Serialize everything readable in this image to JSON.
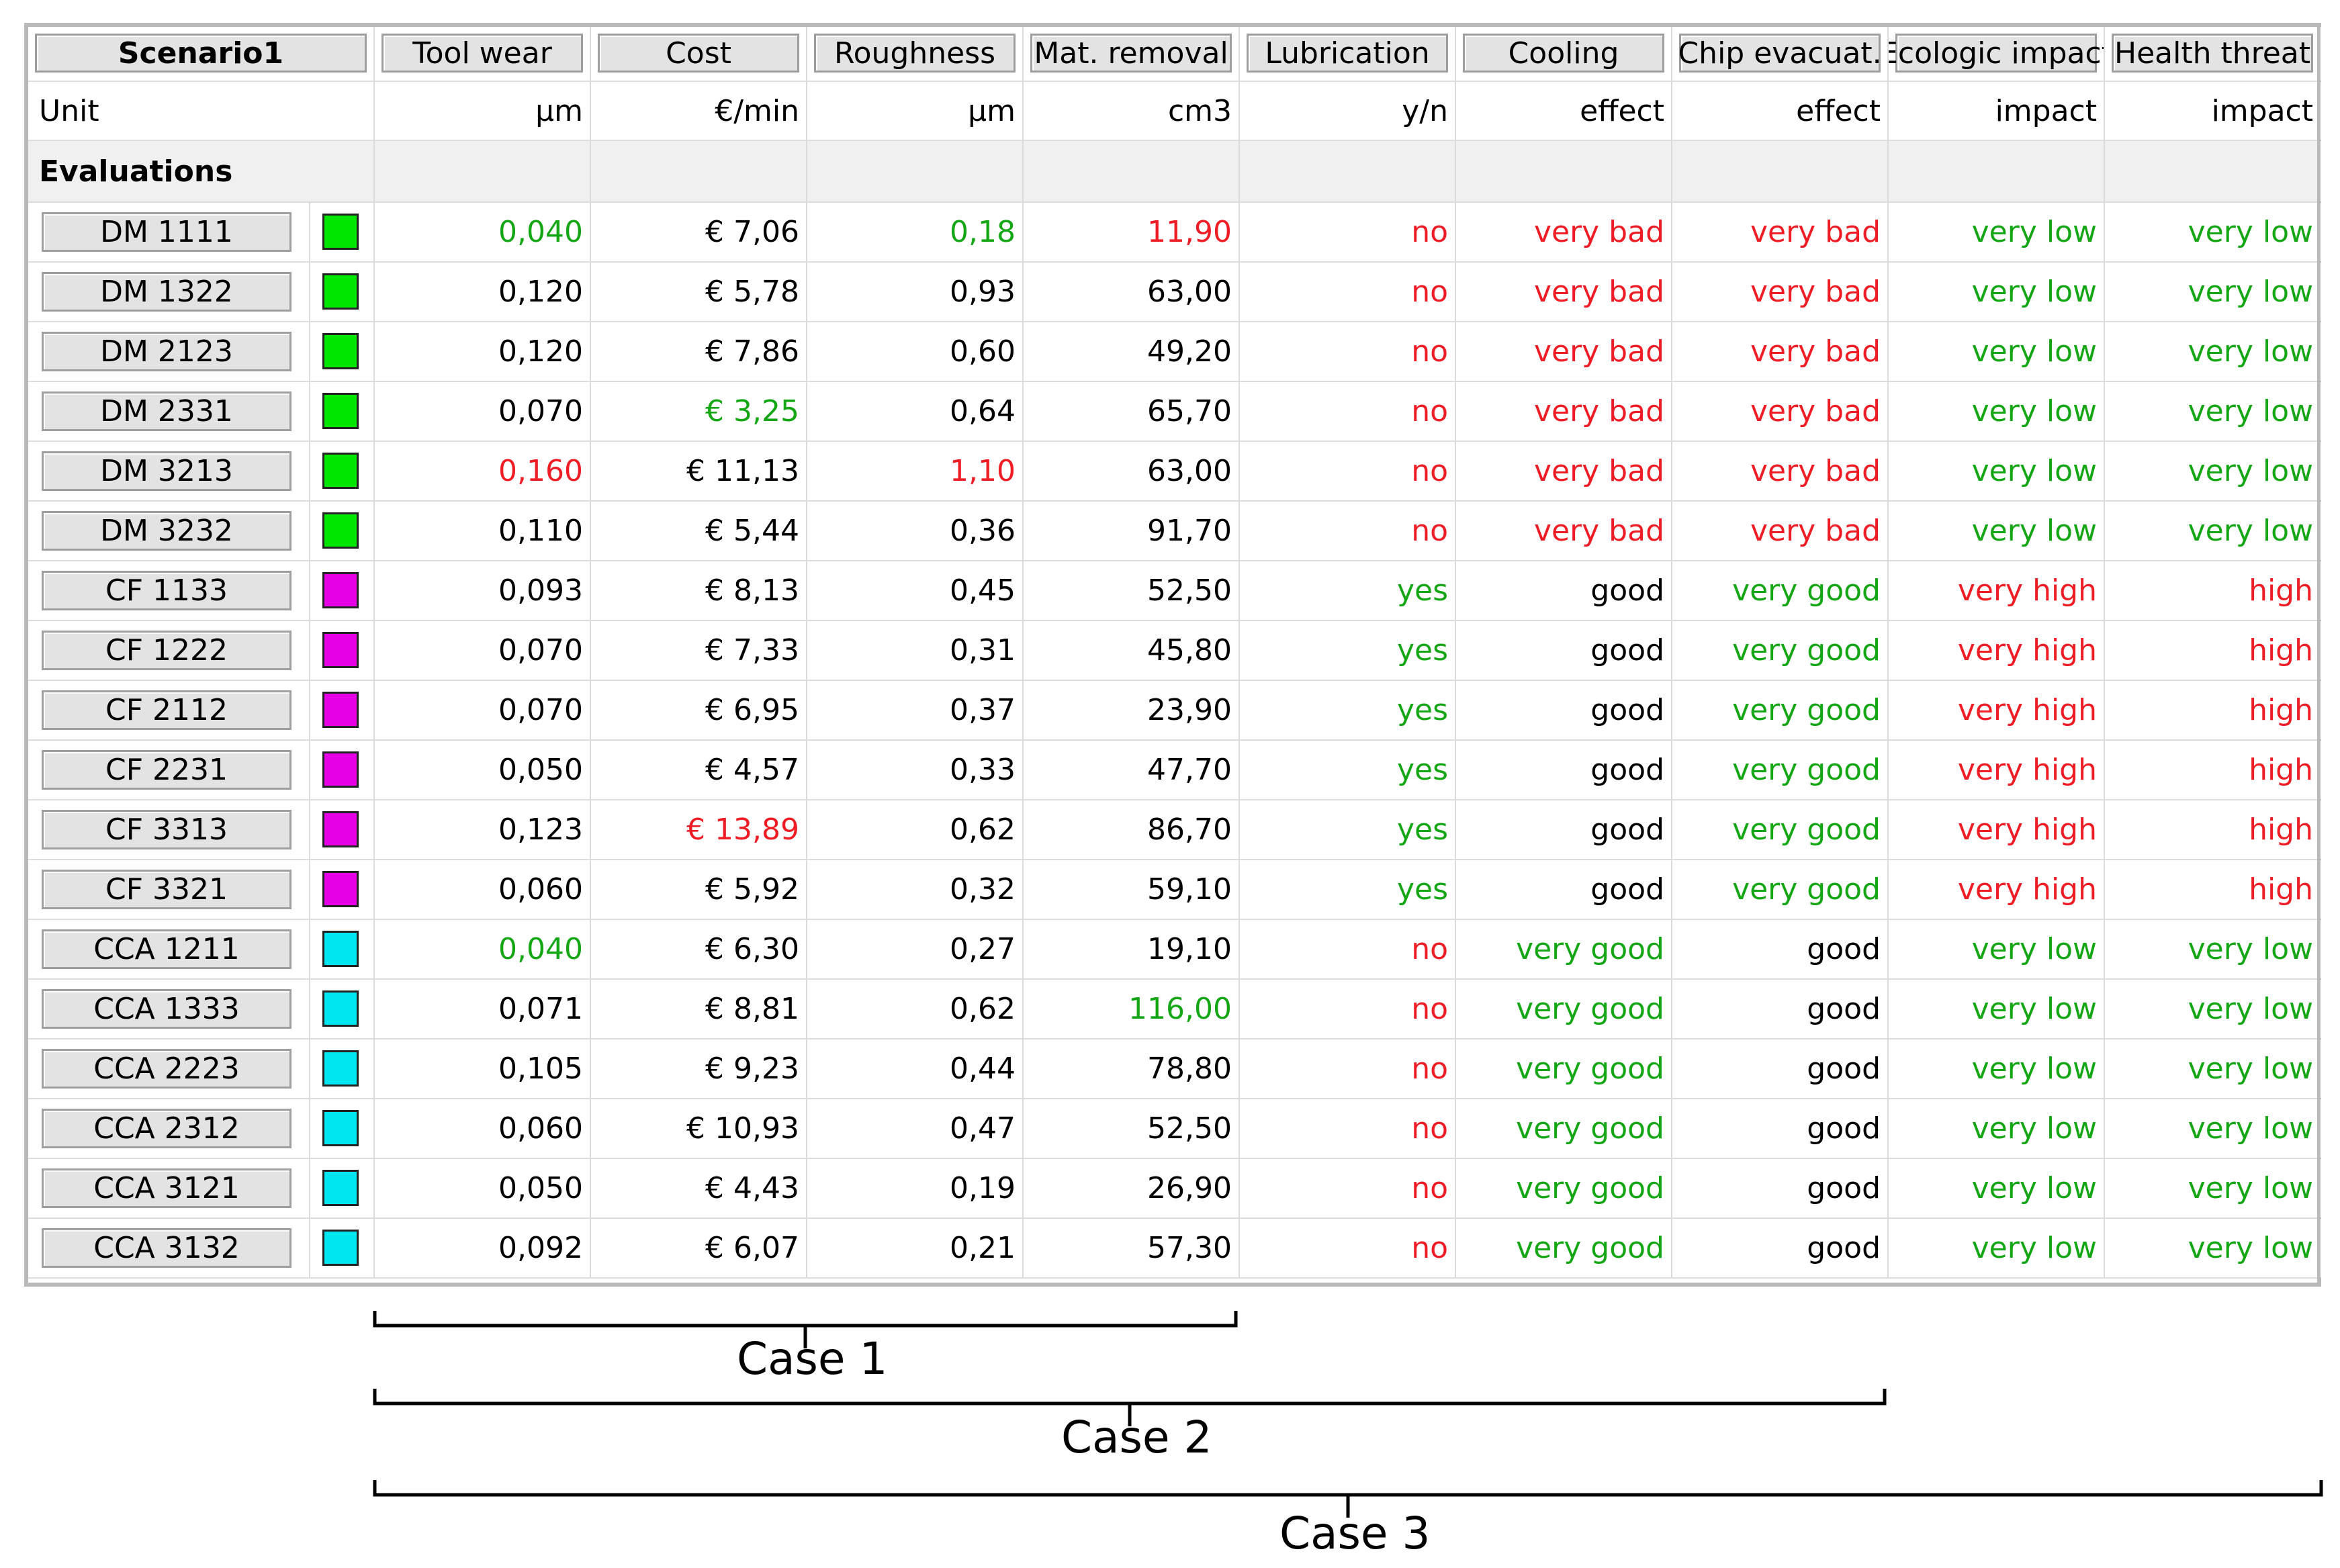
{
  "table": {
    "scenario_label": "Scenario1",
    "unit_label": "Unit",
    "section_label": "Evaluations",
    "columns": [
      {
        "label": "Tool wear",
        "unit": "µm"
      },
      {
        "label": "Cost",
        "unit": "€/min"
      },
      {
        "label": "Roughness",
        "unit": "µm"
      },
      {
        "label": "Mat. removal",
        "unit": "cm3"
      },
      {
        "label": "Lubrication",
        "unit": "y/n"
      },
      {
        "label": "Cooling",
        "unit": "effect"
      },
      {
        "label": "Chip evacuat.",
        "unit": "effect"
      },
      {
        "label": "Ecologic impact",
        "unit": "impact"
      },
      {
        "label": "Health threat",
        "unit": "impact"
      }
    ],
    "colors": {
      "green": "#14a614",
      "red": "#ee1c24",
      "black": "#000000",
      "swatch_dm": "#00e600",
      "swatch_cf": "#e600e6",
      "swatch_cca": "#00e6f0"
    },
    "rows": [
      {
        "name": "DM 1111",
        "swatch": "#00e600",
        "values": [
          "0,040",
          "€ 7,06",
          "0,18",
          "11,90",
          "no",
          "very bad",
          "very bad",
          "very low",
          "very low"
        ],
        "colors": [
          "green",
          "black",
          "green",
          "red",
          "red",
          "red",
          "red",
          "green",
          "green"
        ]
      },
      {
        "name": "DM 1322",
        "swatch": "#00e600",
        "values": [
          "0,120",
          "€ 5,78",
          "0,93",
          "63,00",
          "no",
          "very bad",
          "very bad",
          "very low",
          "very low"
        ],
        "colors": [
          "black",
          "black",
          "black",
          "black",
          "red",
          "red",
          "red",
          "green",
          "green"
        ]
      },
      {
        "name": "DM 2123",
        "swatch": "#00e600",
        "values": [
          "0,120",
          "€ 7,86",
          "0,60",
          "49,20",
          "no",
          "very bad",
          "very bad",
          "very low",
          "very low"
        ],
        "colors": [
          "black",
          "black",
          "black",
          "black",
          "red",
          "red",
          "red",
          "green",
          "green"
        ]
      },
      {
        "name": "DM 2331",
        "swatch": "#00e600",
        "values": [
          "0,070",
          "€ 3,25",
          "0,64",
          "65,70",
          "no",
          "very bad",
          "very bad",
          "very low",
          "very low"
        ],
        "colors": [
          "black",
          "green",
          "black",
          "black",
          "red",
          "red",
          "red",
          "green",
          "green"
        ]
      },
      {
        "name": "DM 3213",
        "swatch": "#00e600",
        "values": [
          "0,160",
          "€ 11,13",
          "1,10",
          "63,00",
          "no",
          "very bad",
          "very bad",
          "very low",
          "very low"
        ],
        "colors": [
          "red",
          "black",
          "red",
          "black",
          "red",
          "red",
          "red",
          "green",
          "green"
        ]
      },
      {
        "name": "DM 3232",
        "swatch": "#00e600",
        "values": [
          "0,110",
          "€ 5,44",
          "0,36",
          "91,70",
          "no",
          "very bad",
          "very bad",
          "very low",
          "very low"
        ],
        "colors": [
          "black",
          "black",
          "black",
          "black",
          "red",
          "red",
          "red",
          "green",
          "green"
        ]
      },
      {
        "name": "CF 1133",
        "swatch": "#e600e6",
        "values": [
          "0,093",
          "€ 8,13",
          "0,45",
          "52,50",
          "yes",
          "good",
          "very good",
          "very high",
          "high"
        ],
        "colors": [
          "black",
          "black",
          "black",
          "black",
          "green",
          "black",
          "green",
          "red",
          "red"
        ]
      },
      {
        "name": "CF 1222",
        "swatch": "#e600e6",
        "values": [
          "0,070",
          "€ 7,33",
          "0,31",
          "45,80",
          "yes",
          "good",
          "very good",
          "very high",
          "high"
        ],
        "colors": [
          "black",
          "black",
          "black",
          "black",
          "green",
          "black",
          "green",
          "red",
          "red"
        ]
      },
      {
        "name": "CF 2112",
        "swatch": "#e600e6",
        "values": [
          "0,070",
          "€ 6,95",
          "0,37",
          "23,90",
          "yes",
          "good",
          "very good",
          "very high",
          "high"
        ],
        "colors": [
          "black",
          "black",
          "black",
          "black",
          "green",
          "black",
          "green",
          "red",
          "red"
        ]
      },
      {
        "name": "CF 2231",
        "swatch": "#e600e6",
        "values": [
          "0,050",
          "€ 4,57",
          "0,33",
          "47,70",
          "yes",
          "good",
          "very good",
          "very high",
          "high"
        ],
        "colors": [
          "black",
          "black",
          "black",
          "black",
          "green",
          "black",
          "green",
          "red",
          "red"
        ]
      },
      {
        "name": "CF 3313",
        "swatch": "#e600e6",
        "values": [
          "0,123",
          "€ 13,89",
          "0,62",
          "86,70",
          "yes",
          "good",
          "very good",
          "very high",
          "high"
        ],
        "colors": [
          "black",
          "red",
          "black",
          "black",
          "green",
          "black",
          "green",
          "red",
          "red"
        ]
      },
      {
        "name": "CF 3321",
        "swatch": "#e600e6",
        "values": [
          "0,060",
          "€ 5,92",
          "0,32",
          "59,10",
          "yes",
          "good",
          "very good",
          "very high",
          "high"
        ],
        "colors": [
          "black",
          "black",
          "black",
          "black",
          "green",
          "black",
          "green",
          "red",
          "red"
        ]
      },
      {
        "name": "CCA 1211",
        "swatch": "#00e6f0",
        "values": [
          "0,040",
          "€ 6,30",
          "0,27",
          "19,10",
          "no",
          "very good",
          "good",
          "very low",
          "very low"
        ],
        "colors": [
          "green",
          "black",
          "black",
          "black",
          "red",
          "green",
          "black",
          "green",
          "green"
        ]
      },
      {
        "name": "CCA 1333",
        "swatch": "#00e6f0",
        "values": [
          "0,071",
          "€ 8,81",
          "0,62",
          "116,00",
          "no",
          "very good",
          "good",
          "very low",
          "very low"
        ],
        "colors": [
          "black",
          "black",
          "black",
          "green",
          "red",
          "green",
          "black",
          "green",
          "green"
        ]
      },
      {
        "name": "CCA 2223",
        "swatch": "#00e6f0",
        "values": [
          "0,105",
          "€ 9,23",
          "0,44",
          "78,80",
          "no",
          "very good",
          "good",
          "very low",
          "very low"
        ],
        "colors": [
          "black",
          "black",
          "black",
          "black",
          "red",
          "green",
          "black",
          "green",
          "green"
        ]
      },
      {
        "name": "CCA 2312",
        "swatch": "#00e6f0",
        "values": [
          "0,060",
          "€ 10,93",
          "0,47",
          "52,50",
          "no",
          "very good",
          "good",
          "very low",
          "very low"
        ],
        "colors": [
          "black",
          "black",
          "black",
          "black",
          "red",
          "green",
          "black",
          "green",
          "green"
        ]
      },
      {
        "name": "CCA 3121",
        "swatch": "#00e6f0",
        "values": [
          "0,050",
          "€ 4,43",
          "0,19",
          "26,90",
          "no",
          "very good",
          "good",
          "very low",
          "very low"
        ],
        "colors": [
          "black",
          "black",
          "black",
          "black",
          "red",
          "green",
          "black",
          "green",
          "green"
        ]
      },
      {
        "name": "CCA 3132",
        "swatch": "#00e6f0",
        "values": [
          "0,092",
          "€ 6,07",
          "0,21",
          "57,30",
          "no",
          "very good",
          "good",
          "very low",
          "very low"
        ],
        "colors": [
          "black",
          "black",
          "black",
          "black",
          "red",
          "green",
          "black",
          "green",
          "green"
        ]
      }
    ]
  },
  "annotations": [
    {
      "label": "Case 1",
      "first_column": 1,
      "last_column": 4
    },
    {
      "label": "Case 2",
      "first_column": 1,
      "last_column": 7
    },
    {
      "label": "Case 3",
      "first_column": 1,
      "last_column": 9
    }
  ]
}
